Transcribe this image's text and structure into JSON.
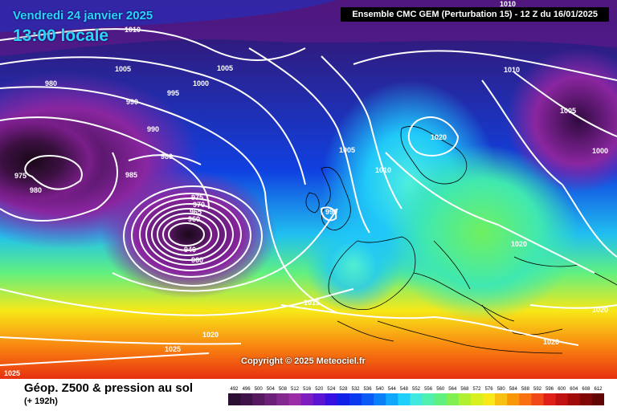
{
  "header": {
    "date": "Vendredi 24 janvier 2025",
    "local_time": "13:00 locale",
    "model_run": "Ensemble CMC GEM  (Perturbation 15)  -  12 Z du 16/01/2025"
  },
  "copyright": "Copyright © 2025 Meteociel.fr",
  "footer": {
    "parameter": "Géop. Z500 & pression au sol",
    "lead_time": "(+ 192h)"
  },
  "isobar_labels": [
    "1010",
    "1005",
    "1005",
    "1000",
    "995",
    "990",
    "990",
    "980",
    "980",
    "980",
    "975",
    "985",
    "975",
    "970",
    "965",
    "960",
    "940",
    "960",
    "1010",
    "1005",
    "1000",
    "1005",
    "1010",
    "1010",
    "990",
    "1020",
    "1020",
    "1015",
    "1020",
    "1025",
    "1025",
    "1020",
    "1020"
  ],
  "scale": {
    "values": [
      "492",
      "496",
      "500",
      "504",
      "508",
      "512",
      "516",
      "520",
      "524",
      "528",
      "532",
      "536",
      "540",
      "544",
      "548",
      "552",
      "556",
      "560",
      "564",
      "568",
      "572",
      "576",
      "580",
      "584",
      "588",
      "592",
      "596",
      "600",
      "604",
      "608",
      "612"
    ],
    "colors": [
      "#2a0f33",
      "#3f1348",
      "#56195f",
      "#6d2077",
      "#84278f",
      "#9b2ea6",
      "#7d1dc0",
      "#5a14d2",
      "#3510e0",
      "#1020e8",
      "#0a3af0",
      "#0a5af5",
      "#0a80f8",
      "#10a8fa",
      "#20d0fc",
      "#40e8e0",
      "#50f0b0",
      "#60f080",
      "#80f050",
      "#b0f030",
      "#d8f020",
      "#f8e818",
      "#f8c010",
      "#f89808",
      "#f87010",
      "#f04818",
      "#e02018",
      "#c01010",
      "#a00a0a",
      "#800606",
      "#600404"
    ]
  }
}
